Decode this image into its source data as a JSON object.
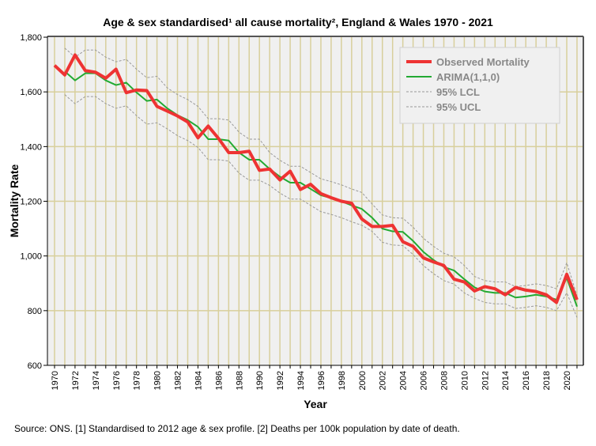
{
  "chart_data": {
    "type": "line",
    "title": "Age & sex standardised¹ all cause mortality², England & Wales 1970 - 2021",
    "xlabel": "Year",
    "ylabel": "Mortality Rate",
    "ylim": [
      600,
      1800
    ],
    "yticks": [
      600,
      800,
      1000,
      1200,
      1400,
      1600,
      1800
    ],
    "ytick_labels": [
      "600",
      "800",
      "1,000",
      "1,200",
      "1,400",
      "1,600",
      "1,800"
    ],
    "xlim": [
      1970,
      2021
    ],
    "xtick_labels": [
      "1970",
      "1972",
      "1974",
      "1976",
      "1978",
      "1980",
      "1982",
      "1984",
      "1986",
      "1988",
      "1990",
      "1992",
      "1994",
      "1996",
      "1998",
      "2000",
      "2002",
      "2004",
      "2006",
      "2008",
      "2010",
      "2012",
      "2014",
      "2016",
      "2018",
      "2020"
    ],
    "grid": true,
    "legend_position": "top-right",
    "series": [
      {
        "name": "Observed Mortality",
        "color": "#ee3333",
        "start": 1970,
        "values": [
          1697,
          1662,
          1735,
          1678,
          1672,
          1650,
          1683,
          1597,
          1607,
          1605,
          1547,
          1530,
          1512,
          1490,
          1432,
          1475,
          1430,
          1378,
          1378,
          1383,
          1313,
          1318,
          1278,
          1310,
          1243,
          1262,
          1228,
          1213,
          1200,
          1193,
          1135,
          1108,
          1108,
          1112,
          1052,
          1035,
          993,
          978,
          965,
          915,
          905,
          872,
          888,
          880,
          858,
          885,
          875,
          870,
          858,
          830,
          933,
          840
        ]
      },
      {
        "name": "ARIMA(1,1,0)",
        "color": "#22aa33",
        "start": 1971,
        "values": [
          1675,
          1642,
          1668,
          1668,
          1642,
          1625,
          1634,
          1598,
          1567,
          1572,
          1540,
          1515,
          1497,
          1472,
          1427,
          1427,
          1422,
          1378,
          1352,
          1352,
          1318,
          1290,
          1268,
          1268,
          1245,
          1222,
          1212,
          1200,
          1185,
          1172,
          1140,
          1100,
          1090,
          1088,
          1055,
          1015,
          985,
          960,
          947,
          915,
          885,
          870,
          865,
          865,
          848,
          852,
          858,
          852,
          840,
          920,
          815
        ]
      },
      {
        "name": "95% LCL",
        "color": "#999999",
        "start": 1971,
        "values": [
          1590,
          1557,
          1583,
          1583,
          1557,
          1540,
          1549,
          1513,
          1482,
          1487,
          1465,
          1440,
          1422,
          1397,
          1352,
          1352,
          1347,
          1303,
          1277,
          1277,
          1258,
          1230,
          1208,
          1208,
          1185,
          1162,
          1152,
          1140,
          1125,
          1112,
          1090,
          1050,
          1040,
          1038,
          1005,
          965,
          935,
          910,
          897,
          865,
          845,
          830,
          825,
          825,
          808,
          812,
          818,
          812,
          800,
          865,
          775
        ]
      },
      {
        "name": "95% UCL",
        "color": "#999999",
        "start": 1971,
        "values": [
          1760,
          1727,
          1753,
          1753,
          1727,
          1710,
          1719,
          1683,
          1652,
          1657,
          1615,
          1590,
          1572,
          1547,
          1502,
          1502,
          1497,
          1453,
          1427,
          1427,
          1378,
          1350,
          1328,
          1328,
          1305,
          1282,
          1272,
          1260,
          1245,
          1232,
          1190,
          1150,
          1140,
          1138,
          1105,
          1065,
          1035,
          1010,
          997,
          965,
          925,
          910,
          905,
          905,
          888,
          892,
          898,
          892,
          880,
          975,
          855
        ]
      }
    ]
  },
  "source": "Source: ONS. [1] Standardised to 2012 age & sex profile. [2] Deaths per 100k population by date of death."
}
